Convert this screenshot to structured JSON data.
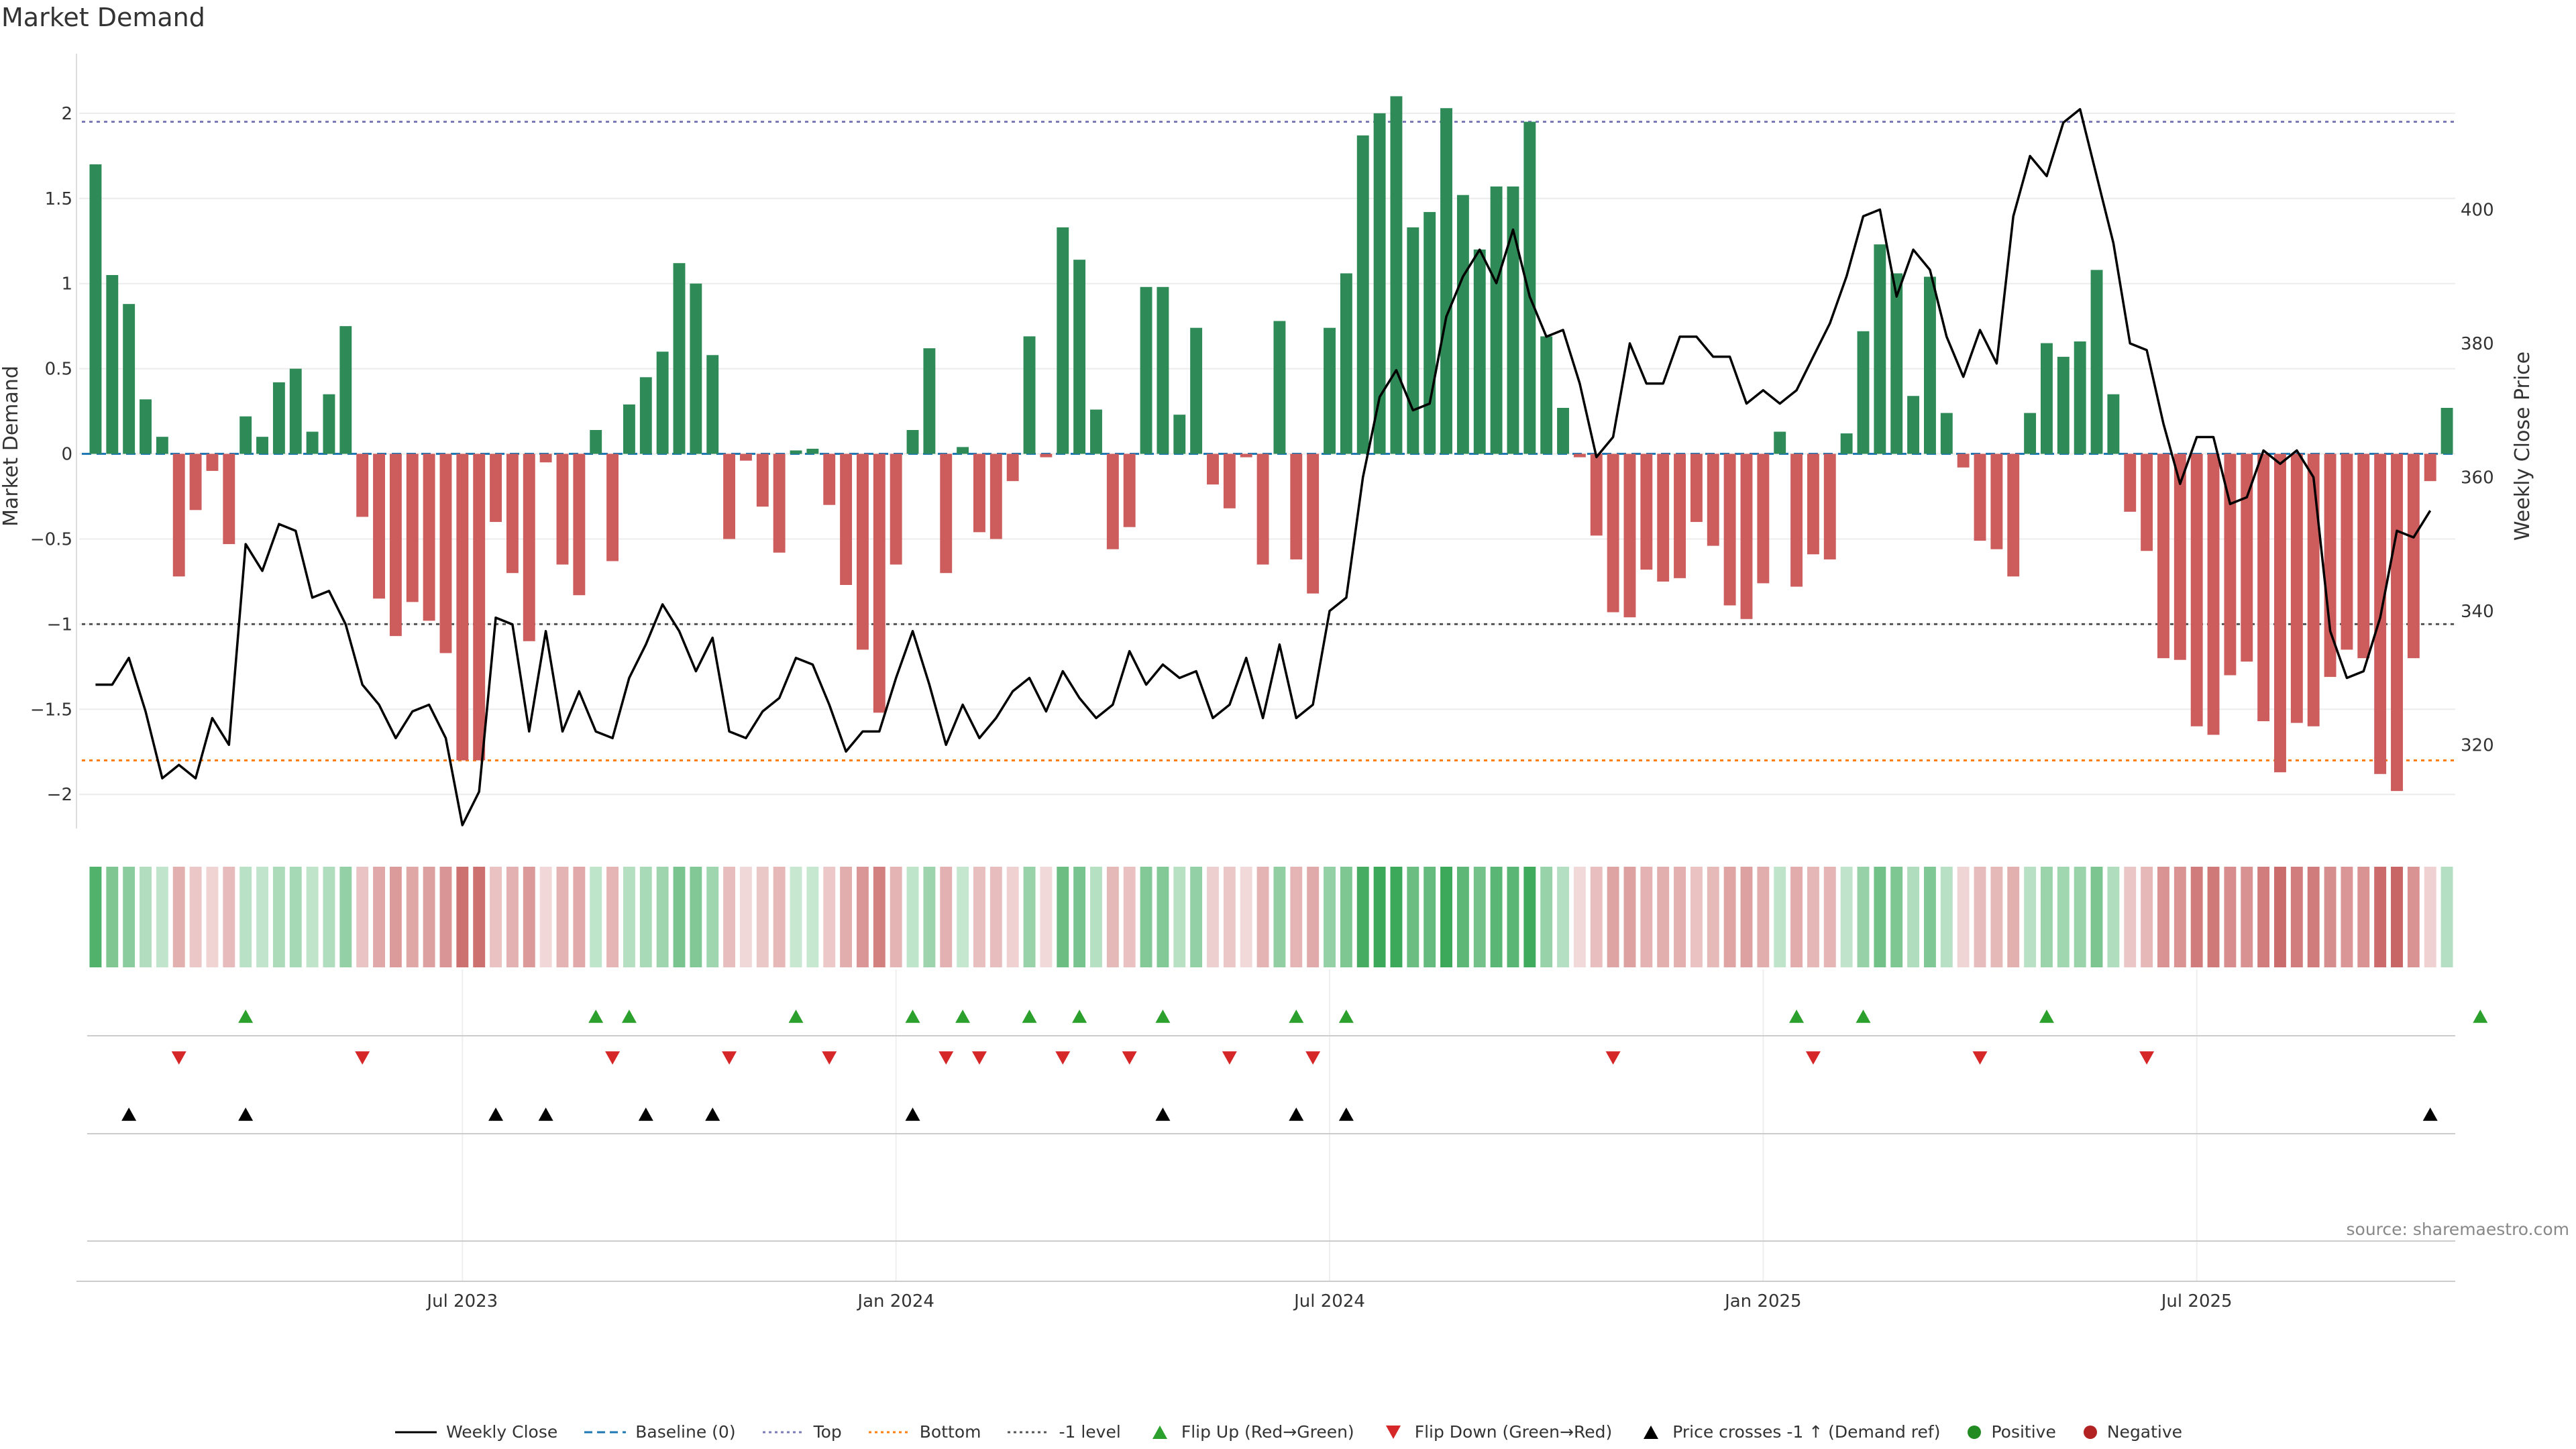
{
  "title": "Market Demand",
  "source": "source: sharemaestro.com",
  "colors": {
    "positive_bar": "#2e8b57",
    "negative_bar": "#cd5c5c",
    "close_line": "#000000",
    "baseline": "#1f77b4",
    "top": "#7b7bb8",
    "bottom": "#ff7f0e",
    "minus1": "#555555",
    "flip_up": "#2ca02c",
    "flip_down": "#d62728",
    "price_cross": "#000000",
    "positive_dot": "#228b22",
    "negative_dot": "#b22222"
  },
  "legend": [
    {
      "key": "close",
      "label": "Weekly Close",
      "icon": "line-solid"
    },
    {
      "key": "baseline",
      "label": "Baseline (0)",
      "icon": "line-dashed"
    },
    {
      "key": "top",
      "label": "Top",
      "icon": "line-dotted"
    },
    {
      "key": "bottom",
      "label": "Bottom",
      "icon": "line-dotted"
    },
    {
      "key": "minus1",
      "label": "-1 level",
      "icon": "line-dotted"
    },
    {
      "key": "flip_up",
      "label": "Flip Up (Red→Green)",
      "icon": "triangle-up"
    },
    {
      "key": "flip_down",
      "label": "Flip Down (Green→Red)",
      "icon": "triangle-down"
    },
    {
      "key": "price_cross",
      "label": "Price crosses -1 ↑ (Demand ref)",
      "icon": "triangle-up"
    },
    {
      "key": "positive",
      "label": "Positive",
      "icon": "circle"
    },
    {
      "key": "negative",
      "label": "Negative",
      "icon": "circle"
    }
  ],
  "chart_data": {
    "type": "bar",
    "title": "Market Demand",
    "ylabel": "Market Demand",
    "y2label": "Weekly Close Price",
    "ylim": [
      -2.2,
      2.35
    ],
    "y2lim": [
      307.5,
      423.3
    ],
    "yticks": [
      -2,
      -1.5,
      -1,
      -0.5,
      0,
      0.5,
      1,
      1.5,
      2
    ],
    "yticklabels": [
      "−2",
      "−1.5",
      "−1",
      "−0.5",
      "0",
      "0.5",
      "1",
      "1.5",
      "2"
    ],
    "y2ticks": [
      320,
      340,
      360,
      380,
      400
    ],
    "y2ticklabels": [
      "320",
      "340",
      "360",
      "380",
      "400"
    ],
    "xticks": [
      22,
      48,
      74,
      100,
      126
    ],
    "xticklabels": [
      "Jul 2023",
      "Jan 2024",
      "Jul 2024",
      "Jan 2025",
      "Jul 2025"
    ],
    "reference_lines": {
      "top": 1.95,
      "bottom": -1.8,
      "minus1": -1.0,
      "baseline": 0
    },
    "demand": [
      1.7,
      1.05,
      0.88,
      0.32,
      0.1,
      -0.72,
      -0.33,
      -0.1,
      -0.53,
      0.22,
      0.1,
      0.42,
      0.5,
      0.13,
      0.35,
      0.75,
      -0.37,
      -0.85,
      -1.07,
      -0.87,
      -0.98,
      -1.17,
      -1.8,
      -1.8,
      -0.4,
      -0.7,
      -1.1,
      -0.05,
      -0.65,
      -0.83,
      0.14,
      -0.63,
      0.29,
      0.45,
      0.6,
      1.12,
      1.0,
      0.58,
      -0.5,
      -0.04,
      -0.31,
      -0.58,
      0.02,
      0.03,
      -0.3,
      -0.77,
      -1.15,
      -1.52,
      -0.65,
      0.14,
      0.62,
      -0.7,
      0.04,
      -0.46,
      -0.5,
      -0.16,
      0.69,
      -0.02,
      1.33,
      1.14,
      0.26,
      -0.56,
      -0.43,
      0.98,
      0.98,
      0.23,
      0.74,
      -0.18,
      -0.32,
      -0.02,
      -0.65,
      0.78,
      -0.62,
      -0.82,
      0.74,
      1.06,
      1.87,
      2.0,
      2.1,
      1.33,
      1.42,
      2.03,
      1.52,
      1.2,
      1.57,
      1.57,
      1.95,
      0.69,
      0.27,
      -0.02,
      -0.48,
      -0.93,
      -0.96,
      -0.68,
      -0.75,
      -0.73,
      -0.4,
      -0.54,
      -0.89,
      -0.97,
      -0.76,
      0.13,
      -0.78,
      -0.59,
      -0.62,
      0.12,
      0.72,
      1.23,
      1.06,
      0.34,
      1.04,
      0.24,
      -0.08,
      -0.51,
      -0.56,
      -0.72,
      0.24,
      0.65,
      0.57,
      0.66,
      1.08,
      0.35,
      -0.34,
      -0.57,
      -1.2,
      -1.21,
      -1.6,
      -1.65,
      -1.3,
      -1.22,
      -1.57,
      -1.87,
      -1.58,
      -1.6,
      -1.31,
      -1.15,
      -1.2,
      -1.88,
      -1.98,
      -1.2,
      -0.16,
      0.27
    ],
    "close": [
      329,
      329,
      333,
      325,
      315,
      317,
      315,
      324,
      320,
      350,
      346,
      353,
      352,
      342,
      343,
      338,
      329,
      326,
      321,
      325,
      326,
      321,
      308,
      313,
      339,
      338,
      322,
      337,
      322,
      328,
      322,
      321,
      330,
      335,
      341,
      337,
      331,
      336,
      322,
      321,
      325,
      327,
      333,
      332,
      326,
      319,
      322,
      322,
      330,
      337,
      329,
      320,
      326,
      321,
      324,
      328,
      330,
      325,
      331,
      327,
      324,
      326,
      334,
      329,
      332,
      330,
      331,
      324,
      326,
      333,
      324,
      335,
      324,
      326,
      340,
      342,
      360,
      372,
      376,
      370,
      371,
      384,
      390,
      394,
      389,
      397,
      387,
      381,
      382,
      374,
      363,
      366,
      380,
      374,
      374,
      381,
      381,
      378,
      378,
      371,
      373,
      371,
      373,
      378,
      383,
      390,
      399,
      400,
      387,
      394,
      391,
      381,
      375,
      382,
      377,
      399,
      408,
      405,
      413,
      415,
      405,
      395,
      380,
      379,
      368,
      359,
      366,
      366,
      356,
      357,
      364,
      362,
      364,
      360,
      337,
      330,
      331,
      339,
      352,
      351,
      355
    ]
  },
  "flip_up": [
    9,
    30,
    32,
    42,
    49,
    52,
    56,
    59,
    64,
    72,
    75,
    102,
    106,
    117,
    143
  ],
  "flip_down": [
    5,
    16,
    31,
    38,
    44,
    51,
    53,
    58,
    62,
    68,
    73,
    91,
    103,
    113,
    123
  ],
  "price_crosses": [
    2,
    9,
    24,
    27,
    33,
    37,
    49,
    64,
    72,
    75,
    140
  ]
}
